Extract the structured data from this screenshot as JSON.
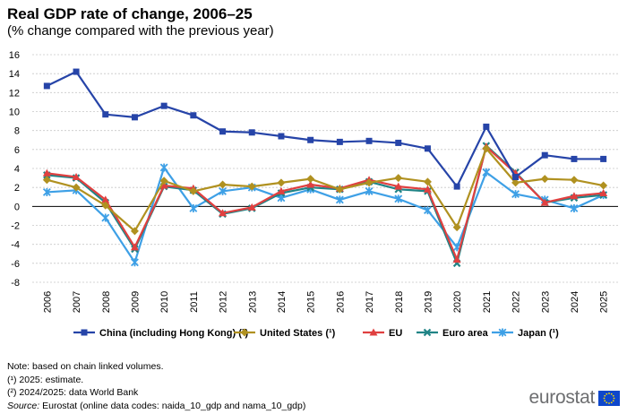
{
  "header": {
    "title": "Real GDP rate of change, 2006–25",
    "subtitle": "(% change compared with the previous year)"
  },
  "chart_data": {
    "type": "line",
    "title": "Real GDP rate of change, 2006–25",
    "subtitle": "(% change compared with the previous year)",
    "xlabel": "",
    "ylabel": "",
    "ylim": [
      -8,
      16
    ],
    "yticks": [
      "16",
      "14",
      "12",
      "10",
      "8",
      "6",
      "4",
      "2",
      "0",
      "-2",
      "-4",
      "-6",
      "-8"
    ],
    "grid": "horizontal dashed",
    "legend_position": "bottom",
    "categories": [
      "2006",
      "2007",
      "2008",
      "2009",
      "2010",
      "2011",
      "2012",
      "2013",
      "2014",
      "2015",
      "2016",
      "2017",
      "2018",
      "2019",
      "2020",
      "2021",
      "2022",
      "2023",
      "2024",
      "2025"
    ],
    "series": [
      {
        "name": "China (including Hong Kong) (²)",
        "color": "#2644a8",
        "marker": "square",
        "values": [
          12.7,
          14.2,
          9.7,
          9.4,
          10.6,
          9.6,
          7.9,
          7.8,
          7.4,
          7.0,
          6.8,
          6.9,
          6.7,
          6.1,
          2.1,
          8.4,
          3.1,
          5.4,
          5.0,
          5.0
        ]
      },
      {
        "name": "United States (¹)",
        "color": "#b09120",
        "marker": "diamond",
        "values": [
          2.8,
          2.0,
          0.1,
          -2.6,
          2.7,
          1.6,
          2.3,
          2.1,
          2.5,
          2.9,
          1.8,
          2.5,
          3.0,
          2.6,
          -2.2,
          6.1,
          2.5,
          2.9,
          2.8,
          2.2
        ]
      },
      {
        "name": "EU",
        "color": "#e04040",
        "marker": "triangle",
        "values": [
          3.5,
          3.1,
          0.7,
          -4.3,
          2.2,
          1.9,
          -0.7,
          -0.1,
          1.6,
          2.3,
          1.9,
          2.8,
          2.1,
          1.8,
          -5.6,
          6.3,
          3.5,
          0.4,
          1.1,
          1.4
        ]
      },
      {
        "name": "Euro area",
        "color": "#208486",
        "marker": "x",
        "values": [
          3.3,
          3.0,
          0.4,
          -4.5,
          2.1,
          1.7,
          -0.8,
          -0.2,
          1.4,
          2.0,
          1.8,
          2.6,
          1.8,
          1.6,
          -6.0,
          6.4,
          3.6,
          0.4,
          0.9,
          1.2
        ]
      },
      {
        "name": "Japan (¹)",
        "color": "#3ea0e6",
        "marker": "star",
        "values": [
          1.5,
          1.7,
          -1.2,
          -5.9,
          4.1,
          -0.2,
          1.6,
          2.0,
          0.9,
          1.8,
          0.7,
          1.6,
          0.8,
          -0.4,
          -4.3,
          3.6,
          1.3,
          0.7,
          -0.2,
          1.2
        ]
      }
    ]
  },
  "notes": {
    "note": "Note: based on chain linked volumes.",
    "fn1": "(¹) 2025: estimate.",
    "fn2": "(²) 2024/2025: data World Bank",
    "source_label": "Source:",
    "source_text": " Eurostat (online data codes: naida_10_gdp and nama_10_gdp)"
  },
  "logo": {
    "text": "eurostat",
    "flag_color": "#0e47cb",
    "star_color": "#ffde00"
  }
}
